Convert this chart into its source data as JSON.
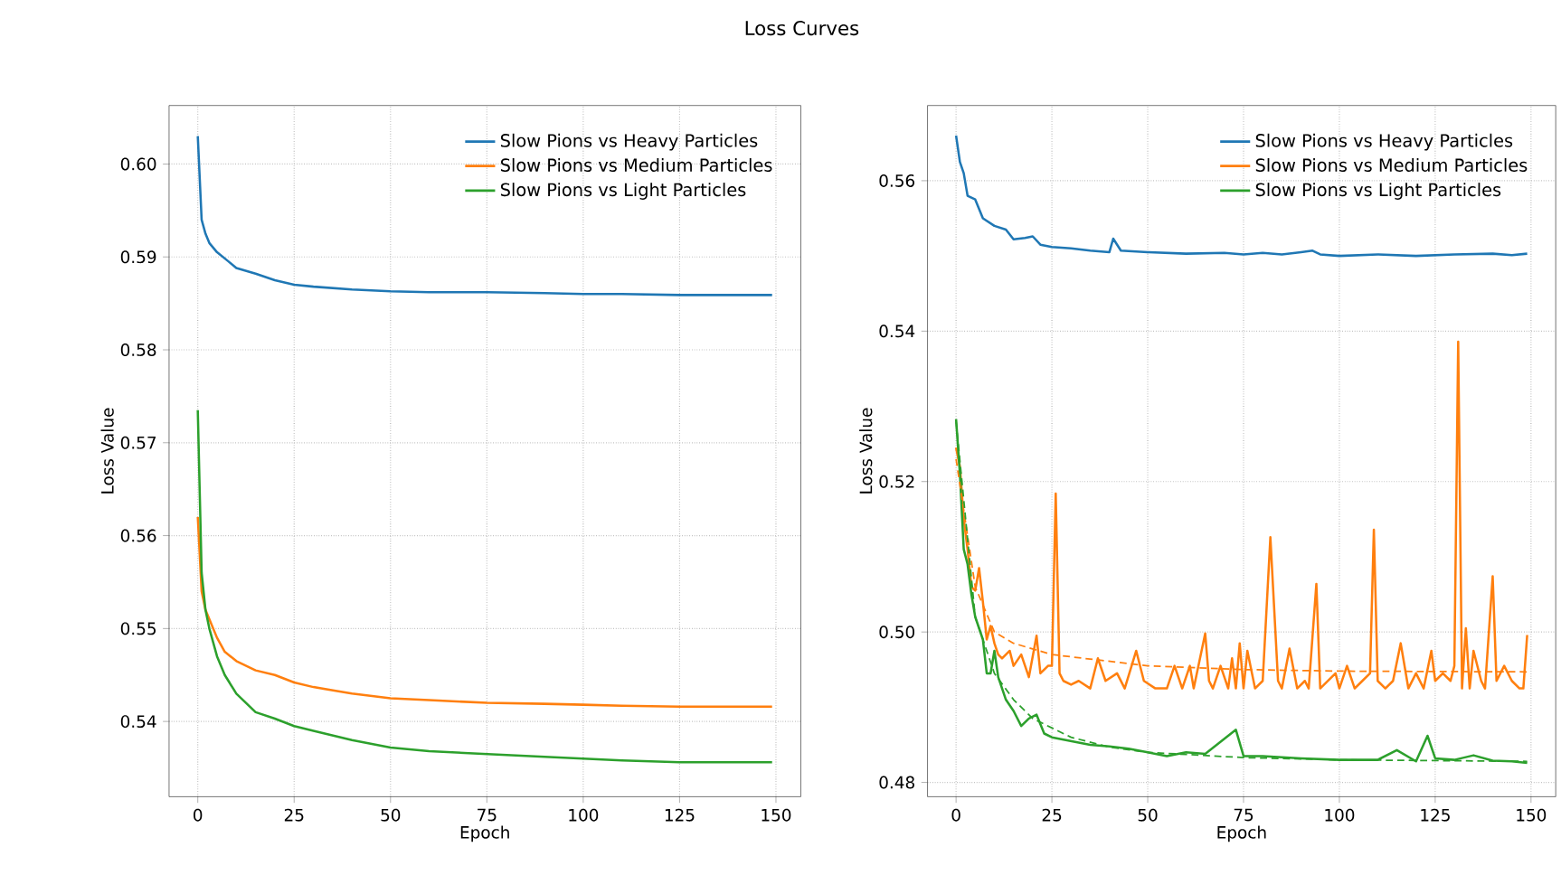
{
  "chart_data": [
    {
      "type": "line",
      "title": "Loss Curves",
      "xlabel": "Epoch",
      "ylabel": "Loss Value",
      "xlim": [
        -7.45,
        156.45
      ],
      "ylim": [
        0.5319,
        0.6063
      ],
      "xticks": [
        0,
        25,
        50,
        75,
        100,
        125,
        150
      ],
      "yticks": [
        0.54,
        0.55,
        0.56,
        0.57,
        0.58,
        0.59,
        {
          "value": 0.6,
          "label": "0.60"
        }
      ],
      "grid": true,
      "legend": "top right",
      "series": [
        {
          "name": "Slow Pions vs Heavy Particles",
          "color": "#1f77b4",
          "x": [
            0,
            1,
            2,
            3,
            5,
            8,
            10,
            15,
            20,
            25,
            30,
            40,
            50,
            60,
            75,
            90,
            100,
            110,
            125,
            140,
            149
          ],
          "values": [
            0.603,
            0.594,
            0.5925,
            0.5915,
            0.5905,
            0.5895,
            0.5888,
            0.5882,
            0.5875,
            0.587,
            0.5868,
            0.5865,
            0.5863,
            0.5862,
            0.5862,
            0.5861,
            0.586,
            0.586,
            0.5859,
            0.5859,
            0.5859
          ]
        },
        {
          "name": "Slow Pions vs Medium Particles",
          "color": "#ff7f0e",
          "x": [
            0,
            1,
            2,
            3,
            5,
            7,
            10,
            15,
            20,
            25,
            30,
            40,
            50,
            60,
            75,
            90,
            100,
            110,
            125,
            140,
            149
          ],
          "values": [
            0.562,
            0.554,
            0.552,
            0.551,
            0.549,
            0.5475,
            0.5465,
            0.5455,
            0.545,
            0.5442,
            0.5437,
            0.543,
            0.5425,
            0.5423,
            0.542,
            0.5419,
            0.5418,
            0.5417,
            0.5416,
            0.5416,
            0.5416
          ]
        },
        {
          "name": "Slow Pions vs Light Particles",
          "color": "#2ca02c",
          "x": [
            0,
            1,
            2,
            3,
            5,
            7,
            10,
            15,
            20,
            25,
            30,
            40,
            50,
            60,
            75,
            90,
            100,
            110,
            125,
            140,
            149
          ],
          "values": [
            0.5735,
            0.556,
            0.552,
            0.55,
            0.547,
            0.545,
            0.543,
            0.541,
            0.5403,
            0.5395,
            0.539,
            0.538,
            0.5372,
            0.5368,
            0.5365,
            0.5362,
            0.536,
            0.5358,
            0.5356,
            0.5356,
            0.5356
          ]
        }
      ]
    },
    {
      "type": "line",
      "xlabel": "Epoch",
      "ylabel": "Loss Value",
      "xlim": [
        -7.45,
        156.45
      ],
      "ylim": [
        0.4781,
        0.57
      ],
      "xticks": [
        0,
        25,
        50,
        75,
        100,
        125,
        150
      ],
      "yticks": [
        0.48,
        {
          "value": 0.5,
          "label": "0.50"
        },
        0.52,
        0.54,
        0.56
      ],
      "grid": true,
      "legend": "top right",
      "series": [
        {
          "name": "Slow Pions vs Heavy Particles",
          "color": "#1f77b4",
          "x": [
            0,
            1,
            2,
            3,
            5,
            7,
            10,
            13,
            15,
            18,
            20,
            22,
            25,
            30,
            35,
            40,
            41,
            43,
            50,
            60,
            70,
            75,
            80,
            85,
            90,
            93,
            95,
            100,
            110,
            120,
            130,
            140,
            145,
            149
          ],
          "values": [
            0.566,
            0.5625,
            0.561,
            0.558,
            0.5575,
            0.555,
            0.554,
            0.5535,
            0.5522,
            0.5524,
            0.5526,
            0.5515,
            0.5512,
            0.551,
            0.5507,
            0.5505,
            0.5523,
            0.5507,
            0.5505,
            0.5503,
            0.5504,
            0.5502,
            0.5504,
            0.5502,
            0.5505,
            0.5507,
            0.5502,
            0.55,
            0.5502,
            0.55,
            0.5502,
            0.5503,
            0.5501,
            0.5503
          ]
        },
        {
          "name": "Slow Pions vs Medium Particles",
          "color": "#ff7f0e",
          "x": [
            0,
            1,
            2,
            3,
            4,
            5,
            6,
            7,
            8,
            9,
            10,
            11,
            12,
            14,
            15,
            17,
            19,
            21,
            22,
            24,
            25,
            26,
            27,
            28,
            30,
            32,
            35,
            37,
            39,
            42,
            44,
            47,
            49,
            52,
            55,
            57,
            59,
            61,
            62,
            65,
            66,
            67,
            69,
            71,
            72,
            73,
            74,
            75,
            76,
            78,
            80,
            82,
            84,
            85,
            87,
            89,
            91,
            92,
            94,
            95,
            97,
            99,
            100,
            102,
            104,
            106,
            108,
            109,
            110,
            112,
            114,
            116,
            118,
            120,
            122,
            124,
            125,
            127,
            129,
            130,
            131,
            132,
            133,
            134,
            135,
            137,
            138,
            140,
            141,
            143,
            145,
            147,
            148,
            149
          ],
          "values": [
            0.5245,
            0.522,
            0.515,
            0.511,
            0.506,
            0.5055,
            0.5085,
            0.504,
            0.499,
            0.5008,
            0.4985,
            0.497,
            0.4965,
            0.4975,
            0.4955,
            0.497,
            0.494,
            0.4995,
            0.4945,
            0.4955,
            0.4955,
            0.5184,
            0.4945,
            0.4935,
            0.493,
            0.4935,
            0.4925,
            0.4965,
            0.4935,
            0.4945,
            0.4925,
            0.4975,
            0.4935,
            0.4925,
            0.4925,
            0.4955,
            0.4925,
            0.4955,
            0.4925,
            0.4998,
            0.4935,
            0.4925,
            0.4955,
            0.4925,
            0.4965,
            0.4925,
            0.4985,
            0.4925,
            0.4975,
            0.4925,
            0.4935,
            0.5126,
            0.4935,
            0.4925,
            0.4978,
            0.4925,
            0.4935,
            0.4925,
            0.5064,
            0.4925,
            0.4935,
            0.4945,
            0.4925,
            0.4955,
            0.4925,
            0.4935,
            0.4945,
            0.5136,
            0.4935,
            0.4925,
            0.4935,
            0.4985,
            0.4925,
            0.4945,
            0.4925,
            0.4975,
            0.4935,
            0.4945,
            0.4935,
            0.4955,
            0.5386,
            0.4925,
            0.5005,
            0.4925,
            0.4975,
            0.4935,
            0.4925,
            0.5074,
            0.4935,
            0.4955,
            0.4935,
            0.4925,
            0.4925,
            0.4996
          ]
        },
        {
          "name": "Slow Pions vs Light Particles",
          "color": "#2ca02c",
          "x": [
            0,
            1,
            2,
            3,
            4,
            5,
            7,
            8,
            9,
            10,
            11,
            13,
            15,
            17,
            19,
            21,
            23,
            25,
            30,
            35,
            40,
            45,
            50,
            55,
            60,
            65,
            73,
            75,
            80,
            90,
            100,
            110,
            115,
            120,
            123,
            125,
            130,
            135,
            140,
            145,
            149
          ],
          "values": [
            0.5283,
            0.521,
            0.511,
            0.509,
            0.505,
            0.502,
            0.499,
            0.4945,
            0.4945,
            0.4975,
            0.494,
            0.491,
            0.4895,
            0.4875,
            0.4885,
            0.489,
            0.4865,
            0.486,
            0.4855,
            0.485,
            0.4848,
            0.4845,
            0.484,
            0.4835,
            0.484,
            0.4838,
            0.487,
            0.4835,
            0.4835,
            0.4832,
            0.483,
            0.483,
            0.4843,
            0.4828,
            0.4862,
            0.4832,
            0.483,
            0.4836,
            0.4829,
            0.4828,
            0.4826
          ]
        },
        {
          "type": "line",
          "line_style": "dashed",
          "color": "#ff7f0e",
          "x": [
            0,
            5,
            10,
            15,
            25,
            50,
            75,
            100,
            149
          ],
          "values": [
            0.523,
            0.506,
            0.5,
            0.4985,
            0.497,
            0.4955,
            0.495,
            0.4948,
            0.4947
          ]
        },
        {
          "type": "line",
          "line_style": "dashed",
          "color": "#2ca02c",
          "x": [
            0,
            5,
            10,
            15,
            20,
            30,
            40,
            50,
            75,
            100,
            149
          ],
          "values": [
            0.528,
            0.502,
            0.4945,
            0.491,
            0.4885,
            0.486,
            0.4847,
            0.484,
            0.4833,
            0.483,
            0.4828
          ]
        }
      ]
    }
  ]
}
